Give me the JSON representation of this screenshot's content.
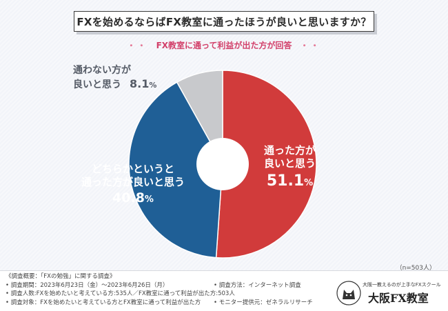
{
  "header": {
    "title": "FXを始めるならばFX教室に通ったほうが良いと思いますか？",
    "subtitle": "FX教室に通って利益が出た方が回答",
    "subtitle_dots_left": "・・",
    "subtitle_dots_right": "・・"
  },
  "chart_data": {
    "type": "pie",
    "title": "FXを始めるならばFX教室に通ったほうが良いと思いますか？",
    "subtitle": "FX教室に通って利益が出た方が回答",
    "slices": [
      {
        "label_line1": "通った方が",
        "label_line2": "良いと思う",
        "value": 51.1,
        "display": "51.1%",
        "color": "#d13b3b"
      },
      {
        "label_line1": "どちらかというと",
        "label_line2": "通った方が良いと思う",
        "value": 40.8,
        "display": "40.8%",
        "color": "#1f5f96"
      },
      {
        "label_line1": "通わない方が",
        "label_line2": "良いと思う",
        "value": 8.1,
        "display": "8.1%",
        "color": "#c8c9cc"
      }
    ],
    "donut": true
  },
  "labels": {
    "yes_line1": "通った方が",
    "yes_line2": "良いと思う",
    "yes_num": "51.1",
    "somewhat_line1": "どちらかというと",
    "somewhat_line2": "通った方が良いと思う",
    "somewhat_num": "40.8",
    "no_line1": "通わない方が",
    "no_line2": "良いと思う",
    "no_num": "8.1",
    "percent_sign": "%"
  },
  "n_note": "（n=503人）",
  "footer": {
    "left": [
      "《調査概要：「FXの勉強」に関する調査》",
      "• 調査期間：2023年6月23日（金）～2023年6月26日（月）",
      "• 調査人数:FXを始めたいと考えている方:535人／FX教室に通って利益が出た方:503人",
      "• 調査対象：FXを始めたいと考えている方とFX教室に通って利益が出た方"
    ],
    "right": [
      "• 調査方法：インターネット調査",
      "• モニター提供元：ゼネラルリサーチ"
    ]
  },
  "brand": {
    "tagline": "大阪一教えるのが上手なFXスクール",
    "name": "大阪FX教室"
  }
}
